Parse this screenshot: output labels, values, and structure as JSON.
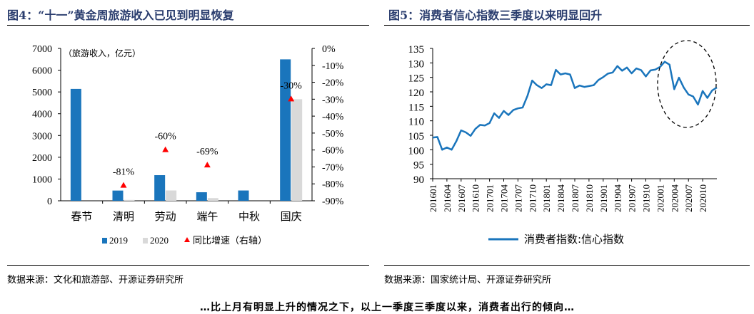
{
  "left": {
    "title": "图4：“十一”黄金周旅游收入已见到明显恢复",
    "source": "数据来源：文化和旅游部、开源证券研究所"
  },
  "right": {
    "title": "图5：消费者信心指数三季度以来明显回升",
    "source": "数据来源：国家统计局、开源证券研究所"
  },
  "footer_partial": "…比上月有明显上升的情况之下，以上一季度三季度以来，消费者出行的倾向…",
  "chart_data": [
    {
      "type": "bar",
      "unit_label": "（旅游收入，亿元）",
      "categories": [
        "春节",
        "清明",
        "劳动",
        "端午",
        "中秋",
        "国庆"
      ],
      "series": [
        {
          "name": "2019",
          "values": [
            5139,
            470,
            1177,
            393,
            473,
            6497
          ],
          "color": "#1a75bc"
        },
        {
          "name": "2020",
          "values": [
            null,
            39,
            475,
            123,
            null,
            4666
          ],
          "color": "#d9d9d9"
        }
      ],
      "secondary": {
        "name": "同比增速（右轴）",
        "values": [
          null,
          -81,
          -60,
          -69,
          null,
          -30
        ],
        "labels": [
          "",
          "-81%",
          "-60%",
          "-69%",
          "",
          "-30%"
        ],
        "color": "#ff0000"
      },
      "ylim": [
        0,
        7000
      ],
      "yticks": [
        "0",
        "1000",
        "2000",
        "3000",
        "4000",
        "5000",
        "6000",
        "7000"
      ],
      "y2lim": [
        -90,
        0
      ],
      "y2ticks": [
        "0%",
        "-10%",
        "-20%",
        "-30%",
        "-40%",
        "-50%",
        "-60%",
        "-70%",
        "-80%",
        "-90%"
      ]
    },
    {
      "type": "line",
      "x_ticks": [
        "201601",
        "201604",
        "201607",
        "201610",
        "201701",
        "201704",
        "201707",
        "201710",
        "201801",
        "201804",
        "201807",
        "201810",
        "201901",
        "201904",
        "201907",
        "201910",
        "202001",
        "202004",
        "202007",
        "202010"
      ],
      "series": [
        {
          "name": "消费者指数:信心指数",
          "color": "#1a75bc",
          "values": [
            104.2,
            104.4,
            100.0,
            100.8,
            100.0,
            103.0,
            106.7,
            106.0,
            104.8,
            107.2,
            108.6,
            108.4,
            109.2,
            112.6,
            111.0,
            113.4,
            112.0,
            113.7,
            114.3,
            114.6,
            118.6,
            123.9,
            122.3,
            121.3,
            122.6,
            122.3,
            127.6,
            126.0,
            126.4,
            126.0,
            121.3,
            122.2,
            121.7,
            122.0,
            122.3,
            124.1,
            125.1,
            126.3,
            126.7,
            128.9,
            127.3,
            128.4,
            126.4,
            128.1,
            127.5,
            125.3,
            127.4,
            127.7,
            128.6,
            130.4,
            129.4,
            120.9,
            124.9,
            121.5,
            119.1,
            118.4,
            115.6,
            120.3,
            117.9,
            120.5,
            121.5
          ]
        }
      ],
      "ylim": [
        90,
        135
      ],
      "yticks": [
        "90",
        "95",
        "100",
        "105",
        "110",
        "115",
        "120",
        "125",
        "130",
        "135"
      ]
    }
  ]
}
